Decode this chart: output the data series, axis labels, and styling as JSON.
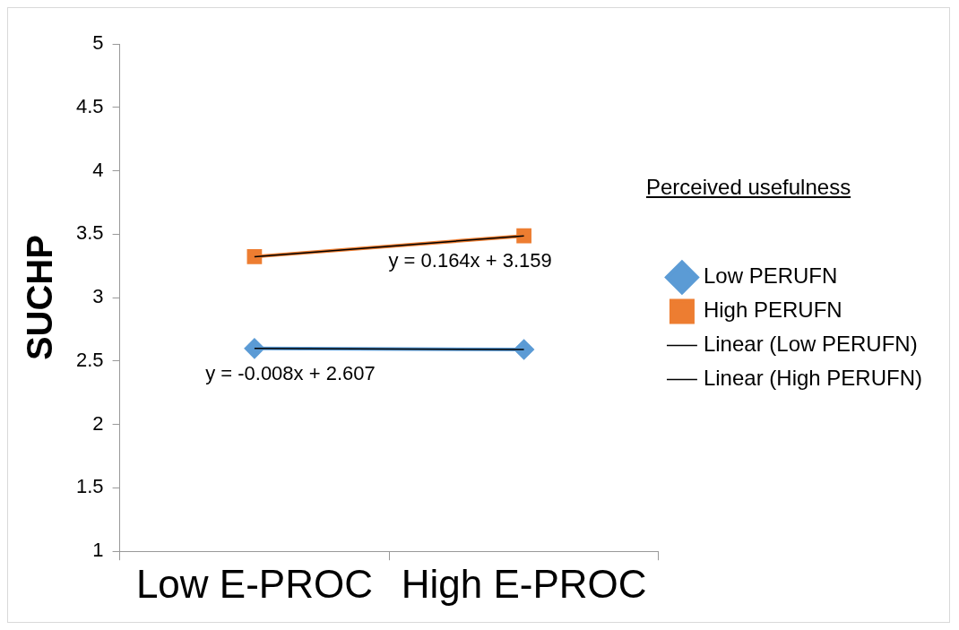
{
  "chart_data": {
    "type": "line",
    "ylabel": "SUCHP",
    "categories": [
      "Low E-PROC",
      "High E-PROC"
    ],
    "series": [
      {
        "name": "Low PERUFN",
        "color": "#5b9bd5",
        "values": [
          2.599,
          2.591
        ],
        "marker": "diamond"
      },
      {
        "name": "High PERUFN",
        "color": "#ed7d31",
        "values": [
          3.323,
          3.487
        ],
        "marker": "square"
      },
      {
        "name": "Linear (Low PERUFN)",
        "color": "#000000",
        "values": [
          2.599,
          2.591
        ],
        "marker": "none"
      },
      {
        "name": "Linear (High PERUFN)",
        "color": "#000000",
        "values": [
          3.323,
          3.487
        ],
        "marker": "none"
      }
    ],
    "ylim": [
      1,
      5
    ],
    "yticks": [
      1,
      1.5,
      2,
      2.5,
      3,
      3.5,
      4,
      4.5,
      5
    ],
    "grid": false,
    "legend": "right",
    "annotations": [
      "Perceived usefulness",
      {
        "text": "y = -0.008x + 2.607",
        "x": "Low E-PROC",
        "y": 2.599
      },
      {
        "text": "y = 0.164x + 3.159",
        "x": "High E-PROC",
        "y": 3.487
      }
    ]
  }
}
